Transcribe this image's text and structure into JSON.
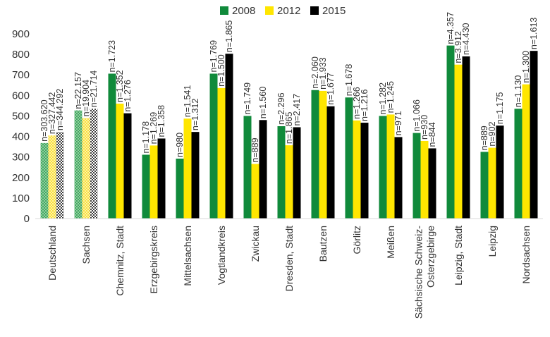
{
  "chart_data": {
    "type": "bar",
    "ylim": [
      0,
      900
    ],
    "yticks": [
      0,
      100,
      200,
      300,
      400,
      500,
      600,
      700,
      800,
      900
    ],
    "grid": false,
    "legend_position": "top-center",
    "categories": [
      "Deutschland",
      "Sachsen",
      "Chemnitz, Stadt",
      "Erzgebirgskreis",
      "Mittelsachsen",
      "Vogtlandkreis",
      "Zwickau",
      "Dresden, Stadt",
      "Bautzen",
      "Görlitz",
      "Meißen",
      "Sächsische Schweiz-\nOsterzgebirge",
      "Leipzig, Stadt",
      "Leipzig",
      "Nordsachsen"
    ],
    "series": [
      {
        "name": "2008",
        "color": "#108a3b",
        "values": [
          368,
          527,
          706,
          311,
          292,
          706,
          500,
          450,
          626,
          590,
          500,
          417,
          843,
          325,
          535
        ],
        "labels": [
          "n=303.620",
          "n=22.157",
          "n=1.723",
          "n=1.178",
          "n=980",
          "n=1.769",
          "n=1.749",
          "n=2.296",
          "n=2.060",
          "n=1.678",
          "n=1.282",
          "n=1.066",
          "n=4.357",
          "n=889",
          "n=1.130"
        ]
      },
      {
        "name": "2012",
        "color": "#ffe600",
        "values": [
          405,
          490,
          560,
          356,
          487,
          636,
          266,
          357,
          622,
          478,
          507,
          378,
          750,
          345,
          654
        ],
        "labels": [
          "n=327.442",
          "n=19.904",
          "n=1.352",
          "n=1.269",
          "n=1.541",
          "n=1.500",
          "n=889",
          "n=1.865",
          "n=1.933",
          "n=1.266",
          "n=1.245",
          "n=930",
          "n=3.912",
          "n=902",
          "n=1.300"
        ]
      },
      {
        "name": "2015",
        "color": "#000000",
        "values": [
          422,
          535,
          513,
          390,
          422,
          803,
          480,
          445,
          547,
          467,
          397,
          342,
          790,
          453,
          817
        ],
        "labels": [
          "n=344.292",
          "n=21.714",
          "n=1.276",
          "n=1.358",
          "n=1.312",
          "n=1.865",
          "n=1.560",
          "n=2.417",
          "n=1.677",
          "n=1.216",
          "n=971",
          "n=844",
          "n=4.430",
          "n=1.175",
          "n=1.613"
        ]
      }
    ],
    "hatched_categories": [
      "Deutschland",
      "Sachsen"
    ]
  }
}
